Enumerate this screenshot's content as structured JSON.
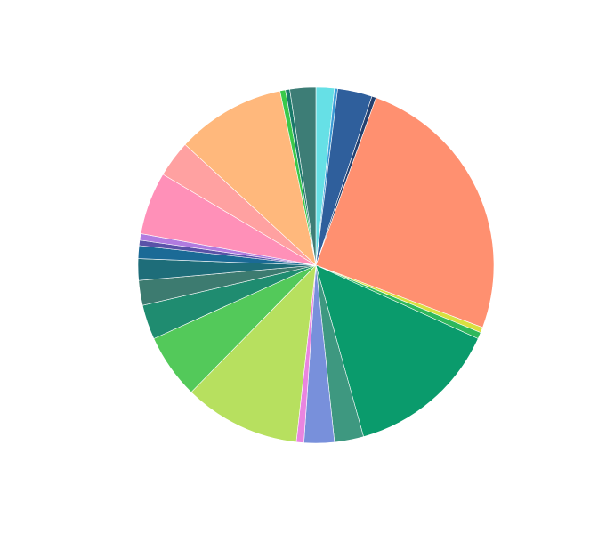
{
  "chart_data": {
    "type": "pie",
    "title": "",
    "legend": "none",
    "slices": [
      {
        "value": 1.7,
        "color": "#66e0e6"
      },
      {
        "value": 0.3,
        "color": "#3a9ad6"
      },
      {
        "value": 3.2,
        "color": "#2f5f9c"
      },
      {
        "value": 0.4,
        "color": "#24406f"
      },
      {
        "value": 25.7,
        "color": "#ff9070"
      },
      {
        "value": 0.5,
        "color": "#d8e040"
      },
      {
        "value": 0.6,
        "color": "#2fb85c"
      },
      {
        "value": 14.2,
        "color": "#0a9b6c"
      },
      {
        "value": 2.7,
        "color": "#3e9880"
      },
      {
        "value": 2.8,
        "color": "#7890db"
      },
      {
        "value": 0.7,
        "color": "#e985e0"
      },
      {
        "value": 10.8,
        "color": "#b7e05f"
      },
      {
        "value": 6.0,
        "color": "#53c95a"
      },
      {
        "value": 3.2,
        "color": "#1f8c70"
      },
      {
        "value": 2.3,
        "color": "#3d7b70"
      },
      {
        "value": 2.0,
        "color": "#1e6d79"
      },
      {
        "value": 1.2,
        "color": "#1b6a96"
      },
      {
        "value": 0.5,
        "color": "#5a52a8"
      },
      {
        "value": 0.6,
        "color": "#b07be0"
      },
      {
        "value": 5.8,
        "color": "#ff90b8"
      },
      {
        "value": 3.4,
        "color": "#ffa1a1"
      },
      {
        "value": 10.1,
        "color": "#ffb87c"
      },
      {
        "value": 0.5,
        "color": "#39c94a"
      },
      {
        "value": 0.4,
        "color": "#1a7a6a"
      },
      {
        "value": 2.4,
        "color": "#3d7d76"
      }
    ]
  }
}
